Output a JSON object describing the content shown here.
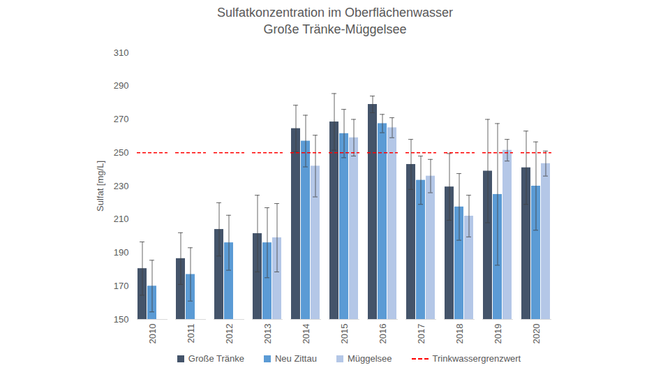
{
  "chart_data": {
    "type": "bar",
    "title": "Sulfatkonzentration im Oberflächenwasser",
    "subtitle": "Große Tränke-Müggelsee",
    "y_label": "Sulfat [mg/L]",
    "categories": [
      "2010",
      "2011",
      "2012",
      "2013",
      "2014",
      "2015",
      "2016",
      "2017",
      "2018",
      "2019",
      "2020"
    ],
    "series": [
      {
        "name": "Große Tränke",
        "color": "#44546a",
        "values": [
          180.5,
          186.5,
          204,
          201.5,
          264.5,
          268.5,
          279,
          243,
          229.5,
          239,
          241
        ],
        "errors": [
          16,
          15.5,
          16,
          23,
          14,
          17,
          5,
          15,
          20,
          31,
          22
        ]
      },
      {
        "name": "Neu Zittau",
        "color": "#5b9bd5",
        "values": [
          170,
          177,
          196,
          196,
          257,
          261.5,
          267.5,
          233.5,
          217.5,
          225,
          230
        ],
        "errors": [
          15.5,
          16,
          16.5,
          21,
          15.5,
          14.5,
          5.5,
          14.5,
          20,
          42.5,
          26.5
        ]
      },
      {
        "name": "Müggelsee",
        "color": "#b4c7e7",
        "values": [
          null,
          null,
          null,
          199,
          242,
          259,
          265,
          236,
          212,
          251.5,
          243.5
        ],
        "errors": [
          null,
          null,
          null,
          20.5,
          18.5,
          11,
          6,
          10,
          12.5,
          6.5,
          7.5
        ]
      },
      {
        "name": "Trinkwassergrenzwert",
        "type": "line",
        "line_style": "dashed",
        "color": "#ff0000",
        "values": [
          250,
          250,
          250,
          250,
          250,
          250,
          250,
          250,
          250,
          250,
          250
        ]
      }
    ],
    "ylim": [
      150,
      310
    ],
    "yticks": [
      150,
      170,
      190,
      210,
      230,
      250,
      270,
      290,
      310
    ],
    "grid": false,
    "legend": "bottom"
  }
}
